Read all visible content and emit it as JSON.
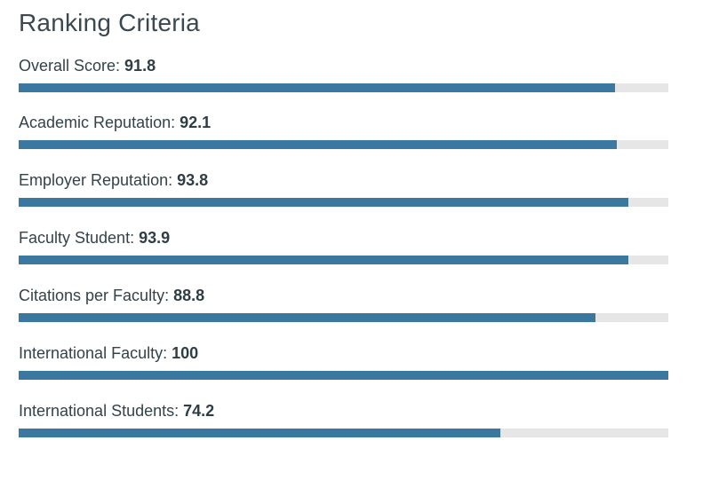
{
  "title": "Ranking Criteria",
  "accent_color": "#3a78a0",
  "track_color": "#e6e6e6",
  "criteria": [
    {
      "label": "Overall Score: ",
      "value": "91.8",
      "fraction": 0.918
    },
    {
      "label": "Academic Reputation: ",
      "value": "92.1",
      "fraction": 0.921
    },
    {
      "label": "Employer Reputation: ",
      "value": "93.8",
      "fraction": 0.938
    },
    {
      "label": "Faculty Student: ",
      "value": "93.9",
      "fraction": 0.939
    },
    {
      "label": "Citations per Faculty: ",
      "value": "88.8",
      "fraction": 0.888
    },
    {
      "label": "International Faculty: ",
      "value": "100",
      "fraction": 1.0
    },
    {
      "label": "International Students: ",
      "value": "74.2",
      "fraction": 0.742
    }
  ]
}
